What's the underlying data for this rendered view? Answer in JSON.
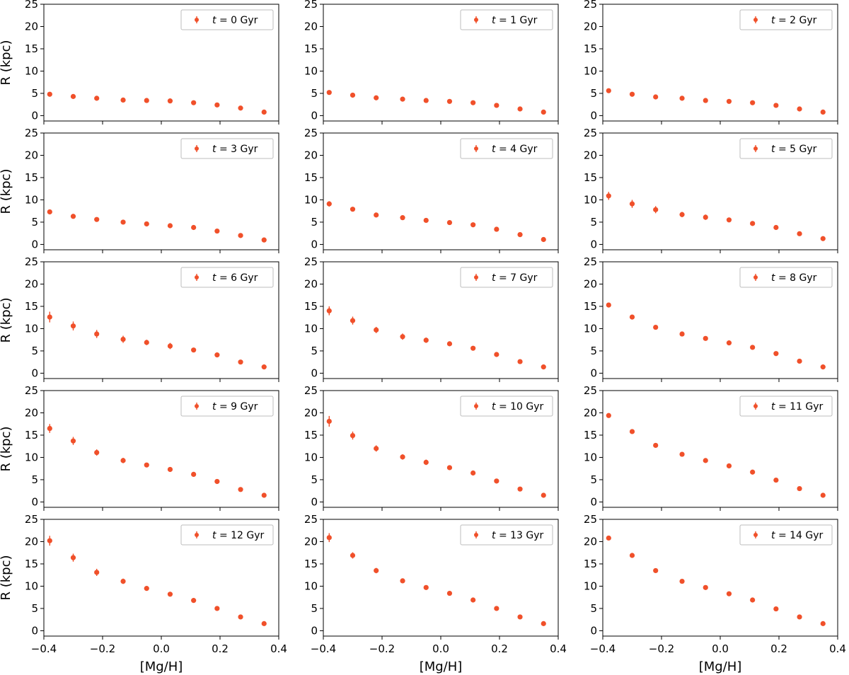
{
  "figure": {
    "series_color": "#f0502a"
  },
  "chart_data": {
    "type": "scatter",
    "layout": {
      "rows": 5,
      "cols": 3
    },
    "xlabel": "[Mg/H]",
    "ylabel": "R (kpc)",
    "xlim": [
      -0.4,
      0.4
    ],
    "ylim": [
      -1.2,
      25
    ],
    "xticks": [
      -0.4,
      -0.2,
      0.0,
      0.2,
      0.4
    ],
    "xtick_labels": [
      "−0.4",
      "−0.2",
      "0.0",
      "0.2",
      "0.4"
    ],
    "yticks": [
      0,
      5,
      10,
      15,
      20,
      25
    ],
    "ytick_labels": [
      "0",
      "5",
      "10",
      "15",
      "20",
      "25"
    ],
    "x": [
      -0.38,
      -0.3,
      -0.22,
      -0.13,
      -0.05,
      0.03,
      0.11,
      0.19,
      0.27,
      0.35
    ],
    "legend_position": "top-right",
    "panels": [
      {
        "legend": {
          "t": "t",
          "text": " = 0 Gyr"
        },
        "y": [
          4.8,
          4.3,
          3.9,
          3.5,
          3.4,
          3.3,
          2.9,
          2.4,
          1.7,
          0.8
        ],
        "yerr": [
          0.3,
          0.2,
          0.2,
          0.2,
          0.2,
          0.2,
          0.2,
          0.2,
          0.2,
          0.2
        ]
      },
      {
        "legend": {
          "t": "t",
          "text": " = 1 Gyr"
        },
        "y": [
          5.2,
          4.6,
          4.0,
          3.7,
          3.4,
          3.2,
          2.9,
          2.3,
          1.5,
          0.8
        ],
        "yerr": [
          0.3,
          0.2,
          0.2,
          0.2,
          0.2,
          0.2,
          0.2,
          0.2,
          0.2,
          0.2
        ]
      },
      {
        "legend": {
          "t": "t",
          "text": " = 2 Gyr"
        },
        "y": [
          5.6,
          4.8,
          4.2,
          3.9,
          3.4,
          3.2,
          2.9,
          2.3,
          1.5,
          0.8
        ],
        "yerr": [
          0.3,
          0.2,
          0.2,
          0.2,
          0.2,
          0.2,
          0.2,
          0.2,
          0.2,
          0.2
        ]
      },
      {
        "legend": {
          "t": "t",
          "text": " = 3 Gyr"
        },
        "y": [
          7.3,
          6.3,
          5.6,
          5.0,
          4.6,
          4.2,
          3.8,
          3.0,
          2.0,
          1.0
        ],
        "yerr": [
          0.3,
          0.3,
          0.2,
          0.2,
          0.2,
          0.2,
          0.2,
          0.2,
          0.2,
          0.2
        ]
      },
      {
        "legend": {
          "t": "t",
          "text": " = 4 Gyr"
        },
        "y": [
          9.1,
          7.9,
          6.6,
          6.0,
          5.4,
          4.9,
          4.4,
          3.4,
          2.2,
          1.1
        ],
        "yerr": [
          0.6,
          0.4,
          0.3,
          0.3,
          0.3,
          0.3,
          0.3,
          0.2,
          0.2,
          0.2
        ]
      },
      {
        "legend": {
          "t": "t",
          "text": " = 5 Gyr"
        },
        "y": [
          10.9,
          9.1,
          7.8,
          6.7,
          6.1,
          5.5,
          4.7,
          3.8,
          2.4,
          1.3
        ],
        "yerr": [
          0.9,
          0.9,
          0.8,
          0.6,
          0.6,
          0.5,
          0.4,
          0.3,
          0.2,
          0.2
        ]
      },
      {
        "legend": {
          "t": "t",
          "text": " = 6 Gyr"
        },
        "y": [
          12.6,
          10.6,
          8.8,
          7.6,
          6.9,
          6.1,
          5.2,
          4.1,
          2.5,
          1.4
        ],
        "yerr": [
          1.2,
          1.0,
          0.9,
          0.8,
          0.6,
          0.7,
          0.5,
          0.3,
          0.2,
          0.2
        ]
      },
      {
        "legend": {
          "t": "t",
          "text": " = 7 Gyr"
        },
        "y": [
          14.0,
          11.8,
          9.7,
          8.2,
          7.4,
          6.6,
          5.6,
          4.2,
          2.6,
          1.4
        ],
        "yerr": [
          1.0,
          0.9,
          0.7,
          0.7,
          0.6,
          0.4,
          0.3,
          0.3,
          0.2,
          0.2
        ]
      },
      {
        "legend": {
          "t": "t",
          "text": " = 8 Gyr"
        },
        "y": [
          15.3,
          12.6,
          10.3,
          8.8,
          7.8,
          6.8,
          5.8,
          4.4,
          2.7,
          1.4
        ],
        "yerr": [
          0.4,
          0.3,
          0.3,
          0.3,
          0.3,
          0.3,
          0.3,
          0.2,
          0.2,
          0.2
        ]
      },
      {
        "legend": {
          "t": "t",
          "text": " = 9 Gyr"
        },
        "y": [
          16.5,
          13.7,
          11.1,
          9.3,
          8.3,
          7.3,
          6.2,
          4.6,
          2.8,
          1.5
        ],
        "yerr": [
          1.0,
          0.9,
          0.7,
          0.6,
          0.5,
          0.4,
          0.3,
          0.3,
          0.2,
          0.2
        ]
      },
      {
        "legend": {
          "t": "t",
          "text": " = 10 Gyr"
        },
        "y": [
          18.1,
          14.9,
          12.0,
          10.1,
          8.9,
          7.7,
          6.5,
          4.7,
          2.9,
          1.5
        ],
        "yerr": [
          1.2,
          0.9,
          0.7,
          0.6,
          0.6,
          0.5,
          0.4,
          0.3,
          0.2,
          0.2
        ]
      },
      {
        "legend": {
          "t": "t",
          "text": " = 11 Gyr"
        },
        "y": [
          19.4,
          15.8,
          12.7,
          10.7,
          9.3,
          8.1,
          6.7,
          4.9,
          3.0,
          1.5
        ],
        "yerr": [
          0.4,
          0.3,
          0.3,
          0.3,
          0.3,
          0.3,
          0.3,
          0.2,
          0.2,
          0.2
        ]
      },
      {
        "legend": {
          "t": "t",
          "text": " = 12 Gyr"
        },
        "y": [
          20.2,
          16.4,
          13.1,
          11.1,
          9.5,
          8.2,
          6.8,
          5.0,
          3.1,
          1.6
        ],
        "yerr": [
          1.1,
          0.9,
          0.8,
          0.6,
          0.5,
          0.4,
          0.4,
          0.3,
          0.2,
          0.2
        ]
      },
      {
        "legend": {
          "t": "t",
          "text": " = 13 Gyr"
        },
        "y": [
          20.9,
          16.9,
          13.5,
          11.2,
          9.7,
          8.4,
          6.9,
          5.0,
          3.1,
          1.6
        ],
        "yerr": [
          1.0,
          0.7,
          0.6,
          0.5,
          0.5,
          0.4,
          0.3,
          0.3,
          0.2,
          0.2
        ]
      },
      {
        "legend": {
          "t": "t",
          "text": " = 14 Gyr"
        },
        "y": [
          20.8,
          16.9,
          13.5,
          11.1,
          9.7,
          8.3,
          6.9,
          4.9,
          3.1,
          1.6
        ],
        "yerr": [
          0.4,
          0.3,
          0.3,
          0.3,
          0.3,
          0.3,
          0.3,
          0.2,
          0.2,
          0.2
        ]
      }
    ]
  }
}
